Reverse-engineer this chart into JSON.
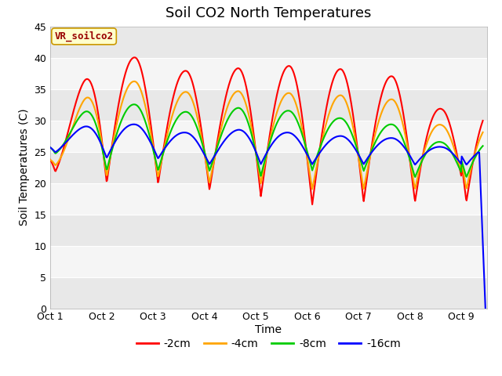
{
  "title": "Soil CO2 North Temperatures",
  "xlabel": "Time",
  "ylabel": "Soil Temperatures (C)",
  "ylim": [
    0,
    45
  ],
  "xlim": [
    0,
    8.5
  ],
  "xtick_positions": [
    0,
    1,
    2,
    3,
    4,
    5,
    6,
    7,
    8
  ],
  "xtick_labels": [
    "Oct 1",
    "Oct 2",
    "Oct 3",
    "Oct 4",
    "Oct 5",
    "Oct 6",
    "Oct 7",
    "Oct 8",
    "Oct 9"
  ],
  "ytick_positions": [
    0,
    5,
    10,
    15,
    20,
    25,
    30,
    35,
    40,
    45
  ],
  "legend_label": "VR_soilco2",
  "series_labels": [
    "-2cm",
    "-4cm",
    "-8cm",
    "-16cm"
  ],
  "series_colors": [
    "#ff0000",
    "#ffa500",
    "#00cc00",
    "#0000ff"
  ],
  "background_color": "#ffffff",
  "plot_bg_light": "#f0f0f0",
  "plot_bg_dark": "#e0e0e0",
  "title_fontsize": 13,
  "axis_label_fontsize": 10,
  "tick_fontsize": 9,
  "legend_fontsize": 10
}
